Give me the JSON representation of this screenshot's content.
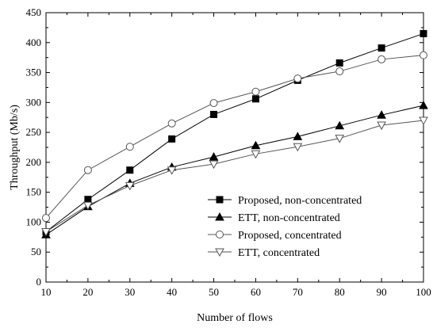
{
  "chart_data": {
    "type": "line",
    "title": "",
    "xlabel": "Number of flows",
    "ylabel": "Throughput (Mb/s)",
    "x": [
      10,
      20,
      30,
      40,
      50,
      60,
      70,
      80,
      90,
      100
    ],
    "xlim": [
      10,
      100
    ],
    "ylim": [
      0,
      450
    ],
    "xticks": [
      "10",
      "20",
      "30",
      "40",
      "50",
      "60",
      "70",
      "80",
      "90",
      "100"
    ],
    "yticks": [
      "0",
      "50",
      "100",
      "150",
      "200",
      "250",
      "300",
      "350",
      "400",
      "450"
    ],
    "grid": false,
    "legend_position": "lower-right",
    "series": [
      {
        "name": "Proposed, non-concentrated",
        "marker": "filled-square",
        "color": "#000000",
        "values": [
          84,
          138,
          187,
          239,
          280,
          306,
          337,
          366,
          391,
          415
        ]
      },
      {
        "name": "ETT, non-concentrated",
        "marker": "filled-triangle-up",
        "color": "#000000",
        "values": [
          79,
          126,
          165,
          192,
          209,
          228,
          243,
          261,
          279,
          295
        ]
      },
      {
        "name": "Proposed, concentrated",
        "marker": "open-circle",
        "color": "#555555",
        "values": [
          107,
          187,
          226,
          265,
          299,
          318,
          340,
          352,
          372,
          379
        ]
      },
      {
        "name": "ETT, concentrated",
        "marker": "open-triangle-down",
        "color": "#555555",
        "values": [
          84,
          128,
          161,
          187,
          197,
          214,
          226,
          240,
          262,
          270
        ]
      }
    ]
  }
}
